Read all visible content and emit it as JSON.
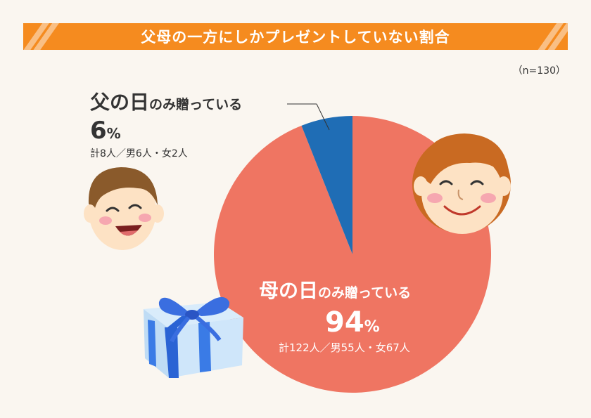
{
  "header": {
    "title": "父母の一方にしかプレゼントしていない割合"
  },
  "sample_note": "（n=130）",
  "labels": {
    "father": {
      "big": "父の日",
      "small": "のみ贈っている",
      "pct": "6",
      "pct_sym": "%",
      "detail": "計8人／男6人・女2人"
    },
    "mother": {
      "big": "母の日",
      "small": "のみ贈っている",
      "pct": "94",
      "pct_sym": "%",
      "detail": "計122人／男55人・女67人"
    }
  },
  "colors": {
    "accent": "#f58b1f",
    "mother_slice": "#ef7562",
    "father_slice": "#1f6db5",
    "background": "#faf6f0"
  },
  "icons": [
    "father-face-icon",
    "mother-face-icon",
    "gift-box-icon"
  ],
  "chart_data": {
    "type": "pie",
    "title": "父母の一方にしかプレゼントしていない割合",
    "slices": [
      {
        "label": "父の日のみ贈っている",
        "value": 6,
        "count": 8,
        "color": "#1f6db5"
      },
      {
        "label": "母の日のみ贈っている",
        "value": 94,
        "count": 122,
        "color": "#ef7562"
      }
    ],
    "n": 130
  }
}
